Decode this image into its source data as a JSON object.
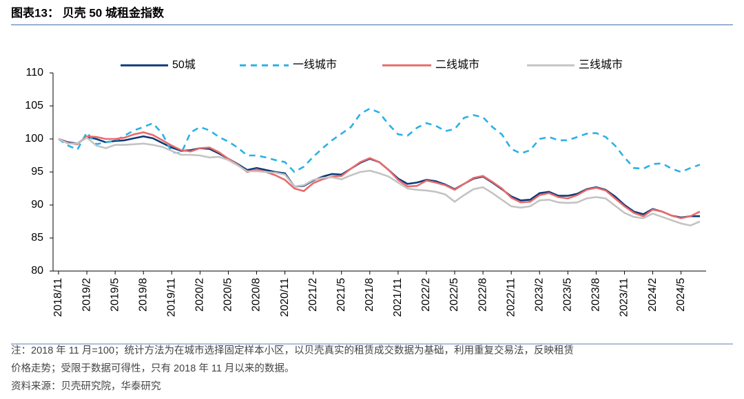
{
  "chart_data": {
    "type": "line",
    "title": "图表13： 贝壳 50 城租金指数",
    "categories": [
      "2018/11",
      null,
      null,
      "2019/2",
      null,
      null,
      "2019/5",
      null,
      null,
      "2019/8",
      null,
      null,
      "2019/11",
      null,
      null,
      "2020/2",
      null,
      null,
      "2020/5",
      null,
      null,
      "2020/8",
      null,
      null,
      "2020/11",
      null,
      null,
      "2021/2",
      null,
      null,
      "2021/5",
      null,
      null,
      "2021/8",
      null,
      null,
      "2021/11",
      null,
      null,
      "2022/2",
      null,
      null,
      "2022/5",
      null,
      null,
      "2022/8",
      null,
      null,
      "2022/11",
      null,
      null,
      "2023/2",
      null,
      null,
      "2023/5",
      null,
      null,
      "2023/8",
      null,
      null,
      "2023/11",
      null,
      null,
      "2024/2",
      null,
      null,
      "2024/5",
      null,
      null
    ],
    "series": [
      {
        "name": "50城",
        "color": "#0d3a7a",
        "line_style": "solid",
        "values": [
          100,
          99.5,
          99.3,
          100.3,
          100,
          99.5,
          99.7,
          99.8,
          100.1,
          100.4,
          100.1,
          99.4,
          98.7,
          98.2,
          98.3,
          98.6,
          98.5,
          97.8,
          97.0,
          96.2,
          95.3,
          95.6,
          95.3,
          95.0,
          94.8,
          92.8,
          92.9,
          93.7,
          94.3,
          94.7,
          94.6,
          95.5,
          96.4,
          97.0,
          96.5,
          95.3,
          94.0,
          93.2,
          93.4,
          93.8,
          93.6,
          93.1,
          92.4,
          93.2,
          94.0,
          94.3,
          93.4,
          92.4,
          91.3,
          90.7,
          90.8,
          91.8,
          92.0,
          91.4,
          91.4,
          91.7,
          92.4,
          92.7,
          92.3,
          91.3,
          90.0,
          89.0,
          88.6,
          89.4,
          89.0,
          88.4,
          88.1,
          88.3,
          88.3
        ]
      },
      {
        "name": "一线城市",
        "color": "#2ab0e6",
        "line_style": "dashed",
        "values": [
          100,
          99.0,
          98.4,
          101.0,
          99.2,
          99.5,
          99.7,
          100.5,
          101.3,
          101.8,
          102.4,
          100.8,
          98.0,
          97.8,
          101.0,
          101.8,
          101.3,
          100.3,
          99.6,
          98.7,
          97.5,
          97.5,
          97.2,
          96.8,
          96.5,
          95.0,
          95.8,
          97.3,
          98.6,
          99.8,
          100.8,
          101.8,
          103.8,
          104.6,
          104.0,
          102.2,
          100.7,
          100.5,
          101.7,
          102.4,
          102.0,
          101.2,
          101.5,
          103.2,
          103.6,
          103.3,
          101.8,
          100.7,
          98.5,
          97.8,
          98.3,
          100.0,
          100.3,
          99.8,
          99.8,
          100.3,
          100.8,
          100.9,
          100.3,
          99.0,
          97.2,
          95.6,
          95.5,
          96.2,
          96.3,
          95.5,
          95.0,
          95.6,
          96.1
        ]
      },
      {
        "name": "二线城市",
        "color": "#e86a6a",
        "line_style": "solid",
        "values": [
          100,
          99.4,
          99.2,
          100.4,
          100.3,
          100.0,
          100.0,
          100.2,
          100.7,
          101.0,
          100.6,
          99.8,
          99.0,
          98.3,
          98.1,
          98.6,
          98.7,
          98.0,
          97.0,
          96.1,
          95.0,
          95.4,
          95.0,
          94.5,
          93.8,
          92.5,
          92.1,
          93.3,
          93.9,
          94.3,
          94.4,
          95.5,
          96.5,
          97.1,
          96.5,
          95.3,
          93.8,
          92.8,
          92.9,
          93.7,
          93.4,
          93.0,
          92.3,
          93.2,
          94.1,
          94.4,
          93.5,
          92.5,
          91.1,
          90.4,
          90.5,
          91.5,
          91.8,
          91.2,
          91.0,
          91.5,
          92.3,
          92.6,
          92.2,
          91.0,
          89.8,
          88.8,
          88.3,
          89.3,
          89.0,
          88.4,
          88.0,
          88.3,
          89.0
        ]
      },
      {
        "name": "三线城市",
        "color": "#c3c3c3",
        "line_style": "solid",
        "values": [
          100,
          99.3,
          99.3,
          100.2,
          99.0,
          98.6,
          99.1,
          99.1,
          99.2,
          99.3,
          99.1,
          98.8,
          98.2,
          97.6,
          97.6,
          97.5,
          97.2,
          97.3,
          96.8,
          96.0,
          95.1,
          95.1,
          95.0,
          94.9,
          94.6,
          92.8,
          93.0,
          93.8,
          94.1,
          94.2,
          93.9,
          94.5,
          95.0,
          95.2,
          94.8,
          94.3,
          93.4,
          92.5,
          92.3,
          92.2,
          92.0,
          91.6,
          90.5,
          91.5,
          92.4,
          92.7,
          91.8,
          90.8,
          89.8,
          89.6,
          89.8,
          90.7,
          90.8,
          90.4,
          90.3,
          90.4,
          91.0,
          91.2,
          91.0,
          89.9,
          88.8,
          88.2,
          88.0,
          88.7,
          88.2,
          87.7,
          87.2,
          86.9,
          87.5
        ]
      }
    ],
    "ylim": [
      80,
      110
    ],
    "yticks": [
      80,
      85,
      90,
      95,
      100,
      105,
      110
    ],
    "legend": "top",
    "notes": [
      "注：2018 年 11 月=100；统计方法为在城市选择固定样本小区，以贝壳真实的租赁成交数据为基础，利用重复交易法，反映租赁",
      "价格走势；受限于数据可得性，只有 2018 年 11 月以来的数据。"
    ],
    "source": "资料来源：贝壳研究院，华泰研究"
  }
}
